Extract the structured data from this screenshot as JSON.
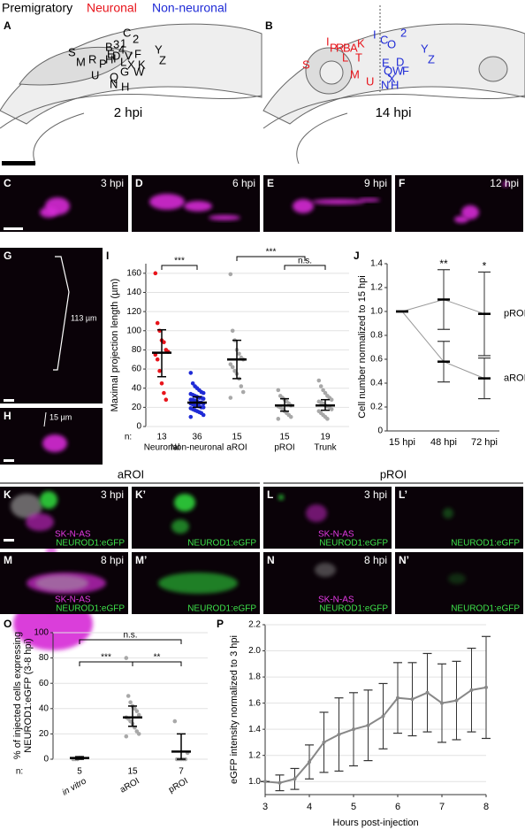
{
  "header": {
    "premigratory": "Premigratory",
    "neuronal": "Neuronal",
    "non_neuronal": "Non-neuronal"
  },
  "panel_a": {
    "label": "A",
    "time": "2 hpi",
    "letters": [
      "C",
      "2",
      "S",
      "B",
      "3",
      "4",
      "E",
      "D",
      "1",
      "Y",
      "Z",
      "M",
      "R",
      "P",
      "H",
      "I",
      "V",
      "F",
      "L",
      "X",
      "K",
      "U",
      "Q",
      "G",
      "W",
      "N",
      "H"
    ]
  },
  "panel_b": {
    "label": "B",
    "time": "14 hpi",
    "neuronal_letters": [
      "I",
      "P",
      "R",
      "B",
      "A",
      "K",
      "L",
      "T",
      "S",
      "M",
      "U"
    ],
    "non_neuronal_letters": [
      "I",
      "C",
      "O",
      "2",
      "Y",
      "Z",
      "E",
      "D",
      "Q",
      "W",
      "F",
      "X",
      "N",
      "H"
    ]
  },
  "images": [
    {
      "label": "C",
      "time": "3 hpi"
    },
    {
      "label": "D",
      "time": "6 hpi"
    },
    {
      "label": "E",
      "time": "9 hpi"
    },
    {
      "label": "F",
      "time": "12 hpi"
    }
  ],
  "panel_g": {
    "label": "G",
    "length": "113 µm"
  },
  "panel_h": {
    "label": "H",
    "length": "15 µm"
  },
  "region_headers": [
    "aROI",
    "pROI"
  ],
  "fluorescence": [
    {
      "label": "K",
      "time": "3 hpi",
      "stain": "SK-N-AS",
      "reporter": "NEUROD1:eGFP"
    },
    {
      "label": "K’",
      "reporter": "NEUROD1:eGFP"
    },
    {
      "label": "L",
      "time": "3 hpi",
      "stain": "SK-N-AS",
      "reporter": "NEUROD1:eGFP"
    },
    {
      "label": "L’",
      "reporter": "NEUROD1:eGFP"
    },
    {
      "label": "M",
      "time": "8 hpi",
      "stain": "SK-N-AS",
      "reporter": "NEUROD1:eGFP"
    },
    {
      "label": "M’",
      "reporter": "NEUROD1:eGFP"
    },
    {
      "label": "N",
      "time": "8 hpi",
      "stain": "SK-N-AS",
      "reporter": "NEUROD1:eGFP"
    },
    {
      "label": "N’",
      "reporter": "NEUROD1:eGFP"
    }
  ],
  "chart_data": [
    {
      "type": "strip",
      "label": "I",
      "ylabel": "Maximal projection length (µm)",
      "n_label": "n:",
      "categories": [
        "Neuronal",
        "Non-neuronal",
        "aROI",
        "pROI",
        "Trunk"
      ],
      "n": [
        13,
        36,
        15,
        15,
        19
      ],
      "colors": [
        "#e8141b",
        "#1f2bd6",
        "#a8a8a8",
        "#a8a8a8",
        "#a8a8a8"
      ],
      "points": [
        [
          160,
          108,
          100,
          90,
          88,
          80,
          78,
          75,
          70,
          58,
          45,
          35,
          28
        ],
        [
          56,
          45,
          42,
          40,
          38,
          36,
          35,
          34,
          33,
          32,
          31,
          30,
          30,
          29,
          28,
          28,
          27,
          26,
          25,
          25,
          24,
          24,
          23,
          22,
          22,
          21,
          20,
          20,
          19,
          18,
          17,
          16,
          15,
          14,
          12,
          10
        ],
        [
          159,
          100,
          90,
          80,
          76,
          72,
          70,
          65,
          62,
          58,
          55,
          50,
          42,
          36,
          30
        ],
        [
          38,
          32,
          30,
          28,
          26,
          24,
          22,
          21,
          20,
          18,
          16,
          14,
          12,
          10,
          8
        ],
        [
          48,
          42,
          38,
          35,
          32,
          30,
          28,
          26,
          25,
          24,
          22,
          21,
          20,
          18,
          16,
          14,
          12,
          10,
          8
        ]
      ],
      "mean": [
        77,
        25,
        70,
        22,
        22
      ],
      "err_low": [
        52,
        20,
        50,
        16,
        17
      ],
      "err_high": [
        101,
        31,
        90,
        29,
        28
      ],
      "ylim": [
        0,
        170
      ],
      "yticks": [
        0,
        20,
        40,
        60,
        80,
        100,
        120,
        140,
        160
      ],
      "grid": true,
      "brackets": [
        "***",
        "***",
        "n.s."
      ]
    },
    {
      "type": "line",
      "label": "J",
      "ylabel": "Cell number normalized to 15 hpi",
      "categories": [
        "15 hpi",
        "48 hpi",
        "72 hpi"
      ],
      "series": [
        {
          "name": "pROI",
          "color": "#999999",
          "values": [
            1.0,
            1.1,
            0.98
          ],
          "errors": [
            0,
            0.25,
            0.35
          ]
        },
        {
          "name": "aROI",
          "color": "#999999",
          "values": [
            1.0,
            0.58,
            0.44
          ],
          "errors": [
            0,
            0.17,
            0.17
          ]
        }
      ],
      "significance": [
        null,
        "**",
        "*"
      ],
      "ylim": [
        0,
        1.4
      ],
      "yticks": [
        0,
        0.2,
        0.4,
        0.6,
        0.8,
        {
          "value": 1,
          "label": "1.0"
        },
        1.2,
        1.4
      ],
      "grid": false
    },
    {
      "type": "strip",
      "label": "O",
      "ylabel": [
        "% of injected cells expressing",
        "NEUROD1:eGFP (3-8 hpi)"
      ],
      "n_label": "n:",
      "categories": [
        "in vitro",
        "aROI",
        "pROI"
      ],
      "n": [
        5,
        15,
        7
      ],
      "colors": [
        "#a8a8a8",
        "#a8a8a8",
        "#a8a8a8"
      ],
      "points": [
        [
          0,
          0,
          0,
          1,
          1
        ],
        [
          80,
          50,
          45,
          42,
          40,
          38,
          35,
          33,
          32,
          30,
          28,
          25,
          22,
          20,
          18
        ],
        [
          30,
          0,
          0,
          0,
          0,
          0,
          5
        ]
      ],
      "mean": [
        1,
        33,
        6
      ],
      "err_low": [
        0,
        26,
        0
      ],
      "err_high": [
        2,
        42,
        20
      ],
      "ylim": [
        0,
        100
      ],
      "yticks": [
        0,
        20,
        40,
        60,
        80,
        100
      ],
      "grid": true,
      "brackets": [
        "n.s.",
        "***",
        "**"
      ]
    },
    {
      "type": "line",
      "label": "P",
      "ylabel": "eGFP intensity normalized to 3 hpi",
      "xlabel": "Hours post-injection",
      "x": [
        3,
        3.33,
        3.67,
        4,
        4.33,
        4.67,
        5,
        5.33,
        5.67,
        6,
        6.33,
        6.67,
        7,
        7.33,
        7.67,
        8
      ],
      "series": [
        {
          "color": "#888888",
          "values": [
            1.0,
            0.99,
            1.02,
            1.15,
            1.3,
            1.36,
            1.4,
            1.43,
            1.5,
            1.64,
            1.63,
            1.68,
            1.6,
            1.62,
            1.7,
            1.72
          ],
          "errors": [
            0,
            0.06,
            0.08,
            0.13,
            0.23,
            0.28,
            0.28,
            0.27,
            0.25,
            0.27,
            0.28,
            0.3,
            0.3,
            0.3,
            0.32,
            0.39
          ]
        }
      ],
      "xlim": [
        3,
        8
      ],
      "xticks": [
        3,
        4,
        5,
        6,
        7,
        8
      ],
      "ylim": [
        0.9,
        2.2
      ],
      "yticks": [
        {
          "value": 1,
          "label": "1.0"
        },
        1.2,
        1.4,
        1.6,
        1.8,
        {
          "value": 2,
          "label": "2.0"
        },
        2.2
      ],
      "grid": true
    }
  ]
}
